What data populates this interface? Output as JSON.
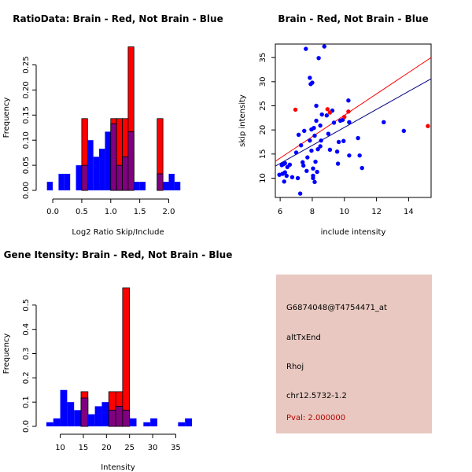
{
  "chart_data": [
    {
      "type": "histogram",
      "title": "RatioData: Brain - Red, Not Brain - Blue",
      "xlabel": "Log2 Ratio Skip/Include",
      "ylabel": "Frequency",
      "xlim": [
        -0.15,
        2.4
      ],
      "ylim": [
        0,
        0.29
      ],
      "xticks": [
        "0.0",
        "0.5",
        "1.0",
        "1.5",
        "2.0"
      ],
      "xtick_values": [
        0,
        0.5,
        1.0,
        1.5,
        2.0
      ],
      "yticks": [
        "0.00",
        "0.05",
        "0.10",
        "0.15",
        "0.20",
        "0.25"
      ],
      "ytick_values": [
        0,
        0.05,
        0.1,
        0.15,
        0.2,
        0.25
      ],
      "bin_start": -0.1,
      "bin_width": 0.1,
      "series": [
        {
          "name": "Brain",
          "color": "#ff0000",
          "values": [
            0,
            0,
            0,
            0,
            0,
            0,
            0.143,
            0,
            0,
            0,
            0,
            0.143,
            0.143,
            0.143,
            0.286,
            0,
            0,
            0,
            0,
            0.143,
            0,
            0,
            0
          ]
        },
        {
          "name": "Not Brain",
          "color": "#0000ff",
          "values": [
            0.017,
            0,
            0.033,
            0.033,
            0,
            0.05,
            0.05,
            0.1,
            0.067,
            0.083,
            0.117,
            0.133,
            0.05,
            0.067,
            0.117,
            0.017,
            0.017,
            0,
            0,
            0.033,
            0.017,
            0.033,
            0.017
          ]
        }
      ]
    },
    {
      "type": "scatter",
      "title": "Brain - Red, Not Brain - Blue",
      "xlabel": "include intensity",
      "ylabel": "skip intensity",
      "xlim": [
        5.7,
        15.4
      ],
      "ylim": [
        6,
        37.8
      ],
      "xticks": [
        "6",
        "8",
        "10",
        "12",
        "14"
      ],
      "xtick_values": [
        6,
        8,
        10,
        12,
        14
      ],
      "yticks": [
        "10",
        "15",
        "20",
        "25",
        "30",
        "35"
      ],
      "ytick_values": [
        10,
        15,
        20,
        25,
        30,
        35
      ],
      "series": [
        {
          "name": "Brain",
          "color": "#ff0000",
          "points": [
            [
              6.95,
              24.2
            ],
            [
              8.95,
              24.3
            ],
            [
              9.1,
              23.6
            ],
            [
              10.0,
              22.7
            ],
            [
              10.25,
              23.8
            ],
            [
              15.2,
              20.8
            ]
          ]
        },
        {
          "name": "Not Brain",
          "color": "#0000ff",
          "points": [
            [
              5.95,
              10.7
            ],
            [
              6.1,
              12.7
            ],
            [
              6.25,
              9.3
            ],
            [
              6.3,
              11.2
            ],
            [
              6.15,
              10.9
            ],
            [
              6.2,
              12.9
            ],
            [
              6.3,
              13.1
            ],
            [
              6.45,
              12.3
            ],
            [
              6.4,
              10.5
            ],
            [
              6.6,
              12.8
            ],
            [
              6.75,
              10.2
            ],
            [
              7.0,
              15.3
            ],
            [
              7.1,
              10.0
            ],
            [
              7.15,
              19.0
            ],
            [
              7.25,
              6.8
            ],
            [
              7.3,
              16.8
            ],
            [
              7.4,
              13.3
            ],
            [
              7.45,
              12.6
            ],
            [
              7.5,
              19.8
            ],
            [
              7.6,
              36.8
            ],
            [
              7.65,
              11.5
            ],
            [
              7.7,
              14.3
            ],
            [
              7.85,
              30.8
            ],
            [
              7.85,
              17.8
            ],
            [
              7.9,
              29.5
            ],
            [
              7.95,
              20.1
            ],
            [
              8.0,
              29.8
            ],
            [
              7.95,
              15.7
            ],
            [
              8.05,
              10.5
            ],
            [
              8.05,
              12.0
            ],
            [
              8.1,
              20.4
            ],
            [
              8.05,
              10.0
            ],
            [
              8.15,
              9.2
            ],
            [
              8.15,
              18.8
            ],
            [
              8.2,
              13.4
            ],
            [
              8.25,
              21.9
            ],
            [
              8.25,
              25.0
            ],
            [
              8.3,
              11.3
            ],
            [
              8.35,
              16.0
            ],
            [
              8.4,
              34.9
            ],
            [
              8.5,
              16.6
            ],
            [
              8.55,
              17.8
            ],
            [
              8.5,
              20.9
            ],
            [
              8.6,
              23.2
            ],
            [
              8.75,
              37.3
            ],
            [
              8.9,
              23.0
            ],
            [
              9.0,
              19.2
            ],
            [
              9.1,
              15.9
            ],
            [
              9.25,
              24.0
            ],
            [
              9.35,
              21.5
            ],
            [
              9.55,
              15.5
            ],
            [
              9.6,
              13.0
            ],
            [
              9.65,
              17.5
            ],
            [
              9.75,
              21.9
            ],
            [
              9.9,
              22.1
            ],
            [
              9.95,
              17.7
            ],
            [
              10.25,
              26.1
            ],
            [
              10.3,
              21.6
            ],
            [
              10.3,
              14.7
            ],
            [
              10.85,
              18.3
            ],
            [
              10.95,
              14.7
            ],
            [
              11.1,
              12.1
            ],
            [
              12.45,
              21.6
            ],
            [
              13.7,
              19.8
            ]
          ]
        }
      ],
      "fit_lines": [
        {
          "name": "Brain fit",
          "color": "#ff0000",
          "from": [
            5.7,
            13.5
          ],
          "to": [
            15.4,
            35.0
          ]
        },
        {
          "name": "Not Brain fit",
          "color": "#00007f",
          "from": [
            5.7,
            12.5
          ],
          "to": [
            15.4,
            30.6
          ]
        }
      ]
    },
    {
      "type": "histogram",
      "title": "Gene Itensity: Brain - Red, Not Brain - Blue",
      "xlabel": "Intensity",
      "ylabel": "Frequency",
      "xlim": [
        6.5,
        38.5
      ],
      "ylim": [
        0,
        0.6
      ],
      "xticks": [
        "10",
        "15",
        "20",
        "25",
        "30",
        "35"
      ],
      "xtick_values": [
        10,
        15,
        20,
        25,
        30,
        35
      ],
      "yticks": [
        "0.0",
        "0.1",
        "0.2",
        "0.3",
        "0.4",
        "0.5"
      ],
      "ytick_values": [
        0,
        0.1,
        0.2,
        0.3,
        0.4,
        0.5
      ],
      "bin_start": 7,
      "bin_width": 1.5,
      "series": [
        {
          "name": "Brain",
          "color": "#ff0000",
          "values": [
            0,
            0,
            0,
            0,
            0,
            0.143,
            0,
            0,
            0,
            0.143,
            0.143,
            0.571,
            0,
            0,
            0,
            0,
            0,
            0,
            0,
            0,
            0
          ]
        },
        {
          "name": "Not Brain",
          "color": "#0000ff",
          "values": [
            0.017,
            0.033,
            0.15,
            0.1,
            0.067,
            0.117,
            0.05,
            0.083,
            0.1,
            0.067,
            0.083,
            0.067,
            0.033,
            0,
            0.017,
            0.033,
            0,
            0,
            0,
            0.017,
            0.033
          ]
        }
      ]
    }
  ],
  "info_panel": {
    "probe": "G6874048@T4754471_at",
    "event_type": "altTxEnd",
    "gene": "Rhoj",
    "location": "chr12.5732-1.2",
    "pval": "Pval: 2.000000"
  }
}
